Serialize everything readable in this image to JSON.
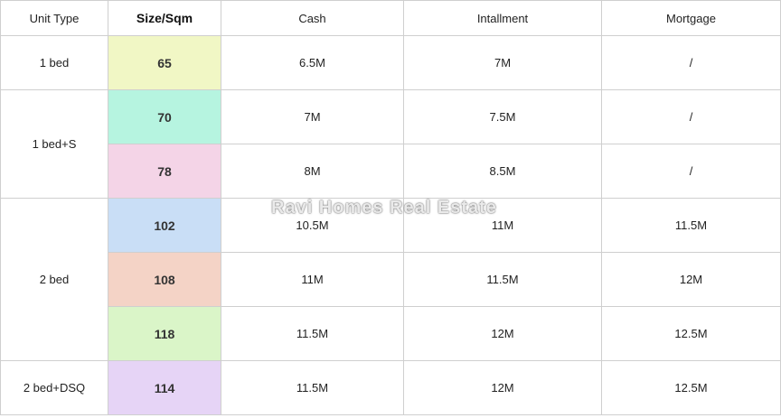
{
  "table": {
    "header": [
      "Unit Type",
      "Size/Sqm",
      "Cash",
      "Intallment",
      "Mortgage"
    ],
    "groups": [
      {
        "unit_type": "1 bed",
        "rows": [
          {
            "color": "#f1f7c5",
            "cells": [
              "65",
              "6.5M",
              "7M",
              "/"
            ]
          }
        ]
      },
      {
        "unit_type": "1 bed+S",
        "rows": [
          {
            "color": "#b6f4e0",
            "cells": [
              "70",
              "7M",
              "7.5M",
              "/"
            ]
          },
          {
            "color": "#f4d4e7",
            "cells": [
              "78",
              "8M",
              "8.5M",
              "/"
            ]
          }
        ]
      },
      {
        "unit_type": "2 bed",
        "rows": [
          {
            "color": "#c9def6",
            "cells": [
              "102",
              "10.5M",
              "11M",
              "11.5M"
            ]
          },
          {
            "color": "#f4d3c6",
            "cells": [
              "108",
              "11M",
              "11.5M",
              "12M"
            ]
          },
          {
            "color": "#daf5c8",
            "cells": [
              "118",
              "11.5M",
              "12M",
              "12.5M"
            ]
          }
        ]
      },
      {
        "unit_type": "2 bed+DSQ",
        "rows": [
          {
            "color": "#e6d4f6",
            "cells": [
              "114",
              "11.5M",
              "12M",
              "12.5M"
            ]
          }
        ]
      }
    ]
  },
  "watermark": "Ravi Homes Real Estate"
}
